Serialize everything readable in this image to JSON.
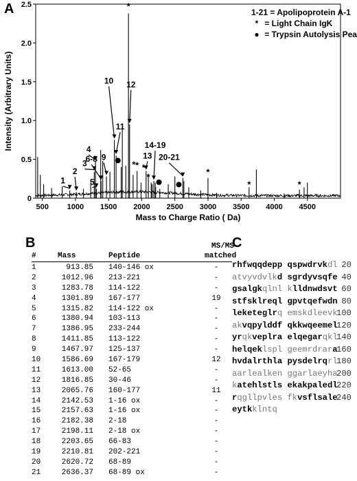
{
  "panels": {
    "a": "A",
    "b": "B",
    "c": "C"
  },
  "legend": {
    "line1": "1-21 = Apolipoprotein A-1",
    "line2": "= Light Chain IgK",
    "line3": "= Trypsin Autolysis Peaks",
    "star": "*",
    "dot": "●"
  },
  "chart_data": {
    "type": "line",
    "title": "",
    "xlabel": "Mass to Charge Ratio ( Da)",
    "ylabel": "Intensity (Arbitrary Units)",
    "xlim": [
      400,
      5000
    ],
    "ylim": [
      0,
      2.5
    ],
    "xticks": [
      500,
      1000,
      1500,
      2000,
      2500,
      3000,
      3500,
      4000,
      4500
    ],
    "yticks": [
      0,
      0.5,
      1.0,
      1.5,
      2.0,
      2.5
    ],
    "ytick_labels": [
      "0",
      "0.5",
      "1.0",
      "1.5",
      "2.0",
      "2.5"
    ],
    "series": [
      {
        "peaks": [
          {
            "x": 430,
            "y": 0.53
          },
          {
            "x": 470,
            "y": 0.3
          },
          {
            "x": 520,
            "y": 0.18
          },
          {
            "x": 640,
            "y": 0.13
          },
          {
            "x": 800,
            "y": 0.15
          },
          {
            "x": 913.85,
            "y": 0.1
          },
          {
            "x": 1012.96,
            "y": 0.08
          },
          {
            "x": 1120,
            "y": 0.12
          },
          {
            "x": 1230,
            "y": 0.2
          },
          {
            "x": 1283.78,
            "y": 0.34
          },
          {
            "x": 1301.89,
            "y": 0.47
          },
          {
            "x": 1315.82,
            "y": 0.12
          },
          {
            "x": 1380.94,
            "y": 0.62
          },
          {
            "x": 1386.95,
            "y": 0.22
          },
          {
            "x": 1411.85,
            "y": 0.48
          },
          {
            "x": 1467.97,
            "y": 0.28
          },
          {
            "x": 1520,
            "y": 0.34
          },
          {
            "x": 1586.69,
            "y": 0.75
          },
          {
            "x": 1613.0,
            "y": 0.55
          },
          {
            "x": 1690,
            "y": 0.4
          },
          {
            "x": 1707,
            "y": 0.92
          },
          {
            "x": 1760,
            "y": 0.42
          },
          {
            "x": 1800,
            "y": 2.38
          },
          {
            "x": 1816.85,
            "y": 0.95
          },
          {
            "x": 1870,
            "y": 0.3
          },
          {
            "x": 1930,
            "y": 0.35
          },
          {
            "x": 1990,
            "y": 0.2
          },
          {
            "x": 2065.76,
            "y": 0.35
          },
          {
            "x": 2100,
            "y": 0.28
          },
          {
            "x": 2142.53,
            "y": 0.2
          },
          {
            "x": 2157.63,
            "y": 0.18
          },
          {
            "x": 2182.38,
            "y": 0.22
          },
          {
            "x": 2203.65,
            "y": 0.2
          },
          {
            "x": 2210.81,
            "y": 0.14
          },
          {
            "x": 2273,
            "y": 0.12
          },
          {
            "x": 2400,
            "y": 0.18
          },
          {
            "x": 2500,
            "y": 0.28
          },
          {
            "x": 2620.72,
            "y": 0.26
          },
          {
            "x": 2636.37,
            "y": 0.22
          },
          {
            "x": 2710,
            "y": 0.14
          },
          {
            "x": 2890,
            "y": 0.1
          },
          {
            "x": 3000,
            "y": 0.26
          },
          {
            "x": 3130,
            "y": 0.07
          },
          {
            "x": 3620,
            "y": 0.14
          },
          {
            "x": 3730,
            "y": 0.37
          },
          {
            "x": 4150,
            "y": 0.06
          },
          {
            "x": 4380,
            "y": 0.11
          },
          {
            "x": 4450,
            "y": 0.14
          },
          {
            "x": 4500,
            "y": 0.2
          }
        ]
      }
    ],
    "annotations": [
      {
        "label": "1",
        "x": 913.85,
        "y": 0.1
      },
      {
        "label": "2",
        "x": 1012.96,
        "y": 0.08
      },
      {
        "label": "3",
        "x": 1283.78,
        "y": 0.34
      },
      {
        "label": "4",
        "x": 1301.89,
        "y": 0.47
      },
      {
        "label": "5",
        "x": 1315.82,
        "y": 0.12
      },
      {
        "label": "6-8",
        "x": 1386.95,
        "y": 0.22
      },
      {
        "label": "9",
        "x": 1467.97,
        "y": 0.28
      },
      {
        "label": "10",
        "x": 1586.69,
        "y": 0.75
      },
      {
        "label": "11",
        "x": 1613.0,
        "y": 0.55
      },
      {
        "label": "12",
        "x": 1816.85,
        "y": 0.95
      },
      {
        "label": "13",
        "x": 2065.76,
        "y": 0.35
      },
      {
        "label": "14-19",
        "x": 2182.38,
        "y": 0.22
      },
      {
        "label": "20-21",
        "x": 2620.72,
        "y": 0.26
      }
    ],
    "star_markers": [
      {
        "x": 1800,
        "y": 2.4
      },
      {
        "x": 1930,
        "y": 0.35
      },
      {
        "x": 1880,
        "y": 0.36
      },
      {
        "x": 2030,
        "y": 0.32
      },
      {
        "x": 2100,
        "y": 0.2
      },
      {
        "x": 3000,
        "y": 0.26
      },
      {
        "x": 3620,
        "y": 0.1
      },
      {
        "x": 4380,
        "y": 0.1
      }
    ],
    "dot_markers": [
      {
        "x": 1640,
        "y": 0.45
      },
      {
        "x": 2260,
        "y": 0.17
      },
      {
        "x": 2560,
        "y": 0.14
      }
    ]
  },
  "table": {
    "headers": [
      "#",
      "Mass",
      "Peptide",
      "MS/MS",
      "matched"
    ],
    "rows": [
      [
        "1",
        "913.85",
        "140-146 ox",
        "-"
      ],
      [
        "2",
        "1012.96",
        "213-221",
        "-"
      ],
      [
        "3",
        "1283.78",
        "114-122",
        "-"
      ],
      [
        "4",
        "1301.89",
        "167-177",
        "19"
      ],
      [
        "5",
        "1315.82",
        "114-122 ox",
        "-"
      ],
      [
        "6",
        "1380.94",
        "103-113",
        "-"
      ],
      [
        "7",
        "1386.95",
        "233-244",
        "-"
      ],
      [
        "8",
        "1411.85",
        "113-122",
        "-"
      ],
      [
        "9",
        "1467.97",
        "125-137",
        "-"
      ],
      [
        "10",
        "1586.69",
        "167-179",
        "12"
      ],
      [
        "11",
        "1613.00",
        "52-65",
        "-"
      ],
      [
        "12",
        "1816.85",
        "30-46",
        "-"
      ],
      [
        "13",
        "2065.76",
        "160-177",
        "11"
      ],
      [
        "14",
        "2142.53",
        "1-16 ox",
        "-"
      ],
      [
        "15",
        "2157.63",
        "1-16 ox",
        "-"
      ],
      [
        "16",
        "2182.38",
        "2-18",
        "-"
      ],
      [
        "17",
        "2198.11",
        "2-18 ox",
        "-"
      ],
      [
        "18",
        "2203.65",
        "66-83",
        "-"
      ],
      [
        "19",
        "2210.81",
        "202-221",
        "-"
      ],
      [
        "20",
        "2620.72",
        "68-89",
        "-"
      ],
      [
        "21",
        "2636.37",
        "68-89 ox",
        "-"
      ]
    ]
  },
  "sequence": {
    "lines": [
      {
        "segs": [
          [
            "b",
            "rhfwqqdepp"
          ],
          [
            "n",
            " "
          ],
          [
            "b",
            "qspwdrvk"
          ],
          [
            "n",
            "dl"
          ]
        ],
        "num": "20"
      },
      {
        "segs": [
          [
            "n",
            "atvyvdvlk"
          ],
          [
            "b",
            "d"
          ],
          [
            "n",
            " "
          ],
          [
            "b",
            "sgrdyvsqfe"
          ]
        ],
        "num": "40"
      },
      {
        "segs": [
          [
            "b",
            "gsalgk"
          ],
          [
            "n",
            "qlnl"
          ],
          [
            "n",
            " "
          ],
          [
            "n",
            "k"
          ],
          [
            "b",
            "lldnwdsvt"
          ]
        ],
        "num": "60"
      },
      {
        "segs": [
          [
            "b",
            "stfsklreql"
          ],
          [
            "n",
            " "
          ],
          [
            "b",
            "gpvtqefwdn"
          ]
        ],
        "num": "80"
      },
      {
        "segs": [
          [
            "b",
            "leketeglr"
          ],
          [
            "n",
            "q emskdleevk"
          ]
        ],
        "num": "100"
      },
      {
        "segs": [
          [
            "n",
            "ak"
          ],
          [
            "b",
            "vqpylddf"
          ],
          [
            "n",
            " "
          ],
          [
            "b",
            "qkkwqeemel"
          ]
        ],
        "num": "120"
      },
      {
        "segs": [
          [
            "b",
            "yr"
          ],
          [
            "n",
            "qk"
          ],
          [
            "b",
            "veplra"
          ],
          [
            "n",
            " "
          ],
          [
            "b",
            "elqegar"
          ],
          [
            "n",
            "qkl"
          ]
        ],
        "num": "140"
      },
      {
        "segs": [
          [
            "b",
            "helqek"
          ],
          [
            "n",
            "lspl geemrdrar"
          ],
          [
            "b",
            "a"
          ]
        ],
        "num": "160"
      },
      {
        "segs": [
          [
            "b",
            "hvdalrthla"
          ],
          [
            "n",
            " "
          ],
          [
            "b",
            "pysdelrq"
          ],
          [
            "n",
            "rl"
          ]
        ],
        "num": "180"
      },
      {
        "segs": [
          [
            "n",
            "aarlealken ggarlaeyha"
          ]
        ],
        "num": "200"
      },
      {
        "segs": [
          [
            "n",
            "k"
          ],
          [
            "b",
            "atehlstls"
          ],
          [
            "n",
            " "
          ],
          [
            "b",
            "ekakpaledl"
          ]
        ],
        "num": "220"
      },
      {
        "segs": [
          [
            "b",
            "r"
          ],
          [
            "n",
            "qgllpvles fk"
          ],
          [
            "b",
            "vsflsale"
          ]
        ],
        "num": "240"
      },
      {
        "segs": [
          [
            "b",
            "eytk"
          ],
          [
            "n",
            "klntq"
          ]
        ],
        "num": ""
      }
    ]
  }
}
